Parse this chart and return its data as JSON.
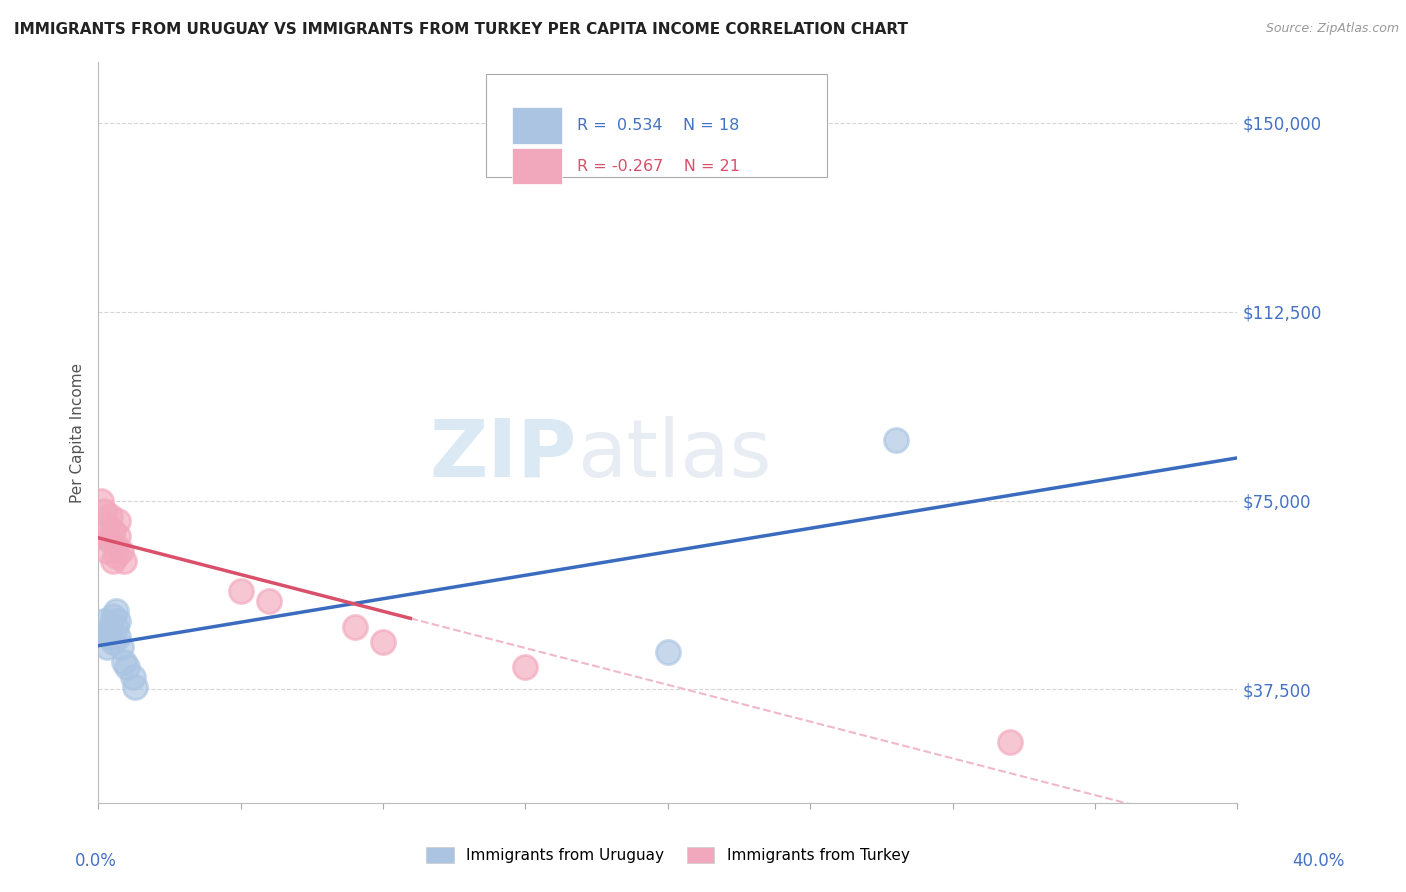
{
  "title": "IMMIGRANTS FROM URUGUAY VS IMMIGRANTS FROM TURKEY PER CAPITA INCOME CORRELATION CHART",
  "source": "Source: ZipAtlas.com",
  "ylabel": "Per Capita Income",
  "xlim": [
    0.0,
    0.4
  ],
  "ylim": [
    15000,
    162000
  ],
  "watermark_zip": "ZIP",
  "watermark_atlas": "atlas",
  "uruguay_R": 0.534,
  "uruguay_N": 18,
  "turkey_R": -0.267,
  "turkey_N": 21,
  "uruguay_color": "#aac4e2",
  "turkey_color": "#f2a8bc",
  "uruguay_line_color": "#3a6bbf",
  "turkey_line_color": "#d9506a",
  "turkey_dash_color": "#f0b8cc",
  "uruguay_x": [
    0.002,
    0.003,
    0.003,
    0.004,
    0.004,
    0.005,
    0.005,
    0.006,
    0.006,
    0.007,
    0.007,
    0.008,
    0.009,
    0.01,
    0.012,
    0.013,
    0.2,
    0.28
  ],
  "uruguay_y": [
    51000,
    46000,
    49000,
    50000,
    48000,
    52000,
    47000,
    53000,
    50000,
    51000,
    48000,
    46000,
    43000,
    42000,
    40000,
    38000,
    45000,
    87000
  ],
  "turkey_x": [
    0.001,
    0.002,
    0.002,
    0.003,
    0.003,
    0.004,
    0.004,
    0.005,
    0.005,
    0.006,
    0.006,
    0.007,
    0.007,
    0.008,
    0.009,
    0.05,
    0.06,
    0.09,
    0.1,
    0.15,
    0.32
  ],
  "turkey_y": [
    75000,
    73000,
    68000,
    70000,
    65000,
    67000,
    72000,
    63000,
    69000,
    66000,
    64000,
    71000,
    68000,
    65000,
    63000,
    57000,
    55000,
    50000,
    47000,
    42000,
    27000
  ],
  "background_color": "#ffffff",
  "grid_color": "#cccccc",
  "title_color": "#222222",
  "axis_label_color": "#4472c4",
  "legend_R_color_uruguay": "#4472c4",
  "legend_R_color_turkey": "#d9506a"
}
